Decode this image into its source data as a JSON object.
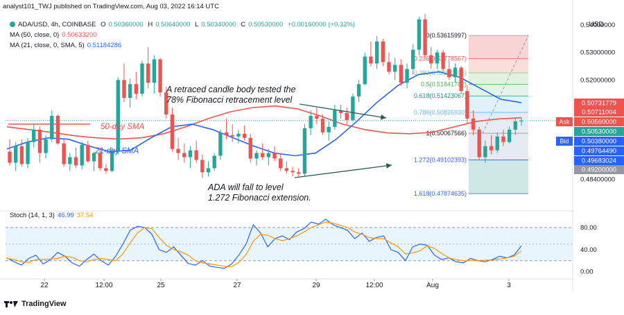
{
  "header": {
    "publisher": "analyst101_TWJ published on TradingView.com, Aug 03, 2022 16:14 UTC",
    "symbol": "ADA/USD, 4h, COINBASE",
    "ohlc": {
      "o_label": "O",
      "o": "0.50360000",
      "h_label": "H",
      "h": "0.50640000",
      "l_label": "L",
      "l": "0.50340000",
      "c_label": "C",
      "c": "0.50530000",
      "change": "+0.00160000 (+0.32%)"
    },
    "ma50": {
      "label": "MA (50, close, 0)",
      "value": "0.50633200"
    },
    "ma21": {
      "label": "MA (21, close, 0, SMA, 5)",
      "value": "0.51184286"
    },
    "stoch": {
      "label": "Stoch (14, 1, 3)",
      "k": "46.99",
      "d": "37.54"
    }
  },
  "currency_label": "USD",
  "footer": {
    "brand": "TradingView"
  },
  "colors": {
    "up": "#26a69a",
    "down": "#ef5350",
    "ma50": "#ef5350",
    "ma21": "#2962ff",
    "stoch_k": "#2962ff",
    "stoch_d": "#ff9800",
    "ask": "#ef5350",
    "bid": "#2962ff"
  },
  "chart_data": [
    {
      "type": "candlestick",
      "x_ticks": [
        "22",
        "12:00",
        "25",
        "27",
        "29",
        "12:00",
        "Aug",
        "3"
      ],
      "y_ticks": [
        "0.54000000",
        "0.53000000",
        "0.52000000",
        "0.48400000"
      ],
      "y_range": [
        0.4735,
        0.5435
      ],
      "candles": [
        [
          0.494,
          0.4985,
          0.489,
          0.49
        ],
        [
          0.49,
          0.4975,
          0.487,
          0.496
        ],
        [
          0.496,
          0.4985,
          0.4885,
          0.4895
        ],
        [
          0.4895,
          0.499,
          0.488,
          0.4975
        ],
        [
          0.4975,
          0.504,
          0.4955,
          0.502
        ],
        [
          0.502,
          0.503,
          0.49,
          0.4935
        ],
        [
          0.4935,
          0.5,
          0.4915,
          0.4985
        ],
        [
          0.4985,
          0.509,
          0.4975,
          0.507
        ],
        [
          0.507,
          0.5075,
          0.4965,
          0.497
        ],
        [
          0.497,
          0.4985,
          0.4885,
          0.4895
        ],
        [
          0.4895,
          0.4935,
          0.487,
          0.492
        ],
        [
          0.492,
          0.4955,
          0.488,
          0.489
        ],
        [
          0.489,
          0.4975,
          0.4875,
          0.4965
        ],
        [
          0.4965,
          0.498,
          0.49,
          0.4905
        ],
        [
          0.4905,
          0.494,
          0.487,
          0.4935
        ],
        [
          0.4935,
          0.4955,
          0.487,
          0.488
        ],
        [
          0.488,
          0.4895,
          0.486,
          0.487
        ],
        [
          0.487,
          0.4955,
          0.4865,
          0.4945
        ],
        [
          0.4945,
          0.521,
          0.493,
          0.52
        ],
        [
          0.52,
          0.526,
          0.512,
          0.5135
        ],
        [
          0.5135,
          0.5205,
          0.51,
          0.5185
        ],
        [
          0.5185,
          0.523,
          0.513,
          0.515
        ],
        [
          0.515,
          0.527,
          0.514,
          0.526
        ],
        [
          0.526,
          0.532,
          0.517,
          0.519
        ],
        [
          0.519,
          0.529,
          0.515,
          0.5275
        ],
        [
          0.5275,
          0.528,
          0.514,
          0.5155
        ],
        [
          0.5155,
          0.5175,
          0.506,
          0.5075
        ],
        [
          0.5075,
          0.51,
          0.494,
          0.495
        ],
        [
          0.495,
          0.499,
          0.491,
          0.4935
        ],
        [
          0.4935,
          0.497,
          0.49,
          0.492
        ],
        [
          0.492,
          0.496,
          0.488,
          0.4945
        ],
        [
          0.4945,
          0.498,
          0.49,
          0.491
        ],
        [
          0.491,
          0.493,
          0.4845,
          0.4865
        ],
        [
          0.4865,
          0.4905,
          0.485,
          0.488
        ],
        [
          0.488,
          0.4935,
          0.487,
          0.4925
        ],
        [
          0.4925,
          0.502,
          0.491,
          0.501
        ],
        [
          0.501,
          0.506,
          0.4985,
          0.5
        ],
        [
          0.5,
          0.504,
          0.4975,
          0.4995
        ],
        [
          0.4995,
          0.502,
          0.497,
          0.5005
        ],
        [
          0.5005,
          0.5035,
          0.498,
          0.499
        ],
        [
          0.499,
          0.5005,
          0.49,
          0.4915
        ],
        [
          0.4915,
          0.4945,
          0.489,
          0.4935
        ],
        [
          0.4935,
          0.497,
          0.491,
          0.492
        ],
        [
          0.492,
          0.495,
          0.489,
          0.4935
        ],
        [
          0.4935,
          0.496,
          0.4905,
          0.4915
        ],
        [
          0.4915,
          0.4935,
          0.487,
          0.488
        ],
        [
          0.488,
          0.4905,
          0.486,
          0.487
        ],
        [
          0.487,
          0.4885,
          0.485,
          0.4865
        ],
        [
          0.4865,
          0.488,
          0.485,
          0.486
        ],
        [
          0.486,
          0.504,
          0.485,
          0.5025
        ],
        [
          0.5025,
          0.509,
          0.5,
          0.507
        ],
        [
          0.507,
          0.51,
          0.504,
          0.506
        ],
        [
          0.506,
          0.5075,
          0.5,
          0.501
        ],
        [
          0.501,
          0.505,
          0.498,
          0.503
        ],
        [
          0.503,
          0.511,
          0.502,
          0.509
        ],
        [
          0.509,
          0.511,
          0.506,
          0.508
        ],
        [
          0.508,
          0.51,
          0.504,
          0.5055
        ],
        [
          0.5055,
          0.515,
          0.505,
          0.514
        ],
        [
          0.514,
          0.52,
          0.512,
          0.5185
        ],
        [
          0.5185,
          0.53,
          0.518,
          0.5285
        ],
        [
          0.5285,
          0.534,
          0.525,
          0.526
        ],
        [
          0.526,
          0.536,
          0.524,
          0.534
        ],
        [
          0.534,
          0.535,
          0.525,
          0.5265
        ],
        [
          0.5265,
          0.53,
          0.522,
          0.523
        ],
        [
          0.523,
          0.528,
          0.52,
          0.5255
        ],
        [
          0.5255,
          0.5275,
          0.518,
          0.519
        ],
        [
          0.519,
          0.526,
          0.517,
          0.524
        ],
        [
          0.524,
          0.533,
          0.522,
          0.531
        ],
        [
          0.531,
          0.543,
          0.529,
          0.542
        ],
        [
          0.542,
          0.544,
          0.528,
          0.529
        ],
        [
          0.529,
          0.532,
          0.524,
          0.526
        ],
        [
          0.526,
          0.531,
          0.524,
          0.53
        ],
        [
          0.53,
          0.531,
          0.523,
          0.524
        ],
        [
          0.524,
          0.527,
          0.52,
          0.521
        ],
        [
          0.521,
          0.526,
          0.519,
          0.5245
        ],
        [
          0.5245,
          0.525,
          0.515,
          0.516
        ],
        [
          0.516,
          0.518,
          0.504,
          0.506
        ],
        [
          0.506,
          0.509,
          0.5,
          0.502
        ],
        [
          0.502,
          0.503,
          0.491,
          0.492
        ],
        [
          0.492,
          0.498,
          0.49,
          0.496
        ],
        [
          0.496,
          0.5,
          0.493,
          0.4945
        ],
        [
          0.4945,
          0.501,
          0.4935,
          0.4995
        ],
        [
          0.4995,
          0.502,
          0.496,
          0.4975
        ],
        [
          0.4975,
          0.503,
          0.497,
          0.502
        ],
        [
          0.502,
          0.506,
          0.5,
          0.505
        ],
        [
          0.505,
          0.5064,
          0.5034,
          0.5053
        ]
      ],
      "ma50": [
        0.503,
        0.502,
        0.501,
        0.4998,
        0.499,
        0.4986,
        0.499,
        0.5005,
        0.503,
        0.506,
        0.5085,
        0.51,
        0.5106,
        0.5095,
        0.507,
        0.504,
        0.502,
        0.5008,
        0.5005,
        0.501,
        0.503,
        0.505,
        0.5059,
        0.5063
      ],
      "ma21": [
        0.495,
        0.4975,
        0.499,
        0.4985,
        0.496,
        0.494,
        0.4945,
        0.499,
        0.503,
        0.504,
        0.502,
        0.499,
        0.496,
        0.4935,
        0.4925,
        0.4935,
        0.4985,
        0.505,
        0.512,
        0.518,
        0.522,
        0.523,
        0.521,
        0.517,
        0.513,
        0.5118
      ],
      "fibonacci": [
        {
          "label": "0(0.53615997)",
          "value": 0.53616
        },
        {
          "label": "0.236(0.52778567)",
          "value": 0.52779
        },
        {
          "label": "0.382(0.52260496)",
          "value": 0.5226
        },
        {
          "label": "0.5(0.51841782)",
          "value": 0.51842
        },
        {
          "label": "0.618(0.51423067)",
          "value": 0.51423
        },
        {
          "label": "0.786(0.50826930)",
          "value": 0.50827
        },
        {
          "label": "1(0.50067566)",
          "value": 0.50068
        },
        {
          "label": "1.272(0.49102393)",
          "value": 0.49102
        },
        {
          "label": "1.618(0.47874635)",
          "value": 0.47875
        }
      ],
      "price_tags": [
        {
          "label": "",
          "value": "0.50731779",
          "color": "#ef5350"
        },
        {
          "label": "",
          "value": "0.50711004",
          "color": "#ef5350"
        },
        {
          "label": "Ask",
          "value": "0.50560000",
          "color": "#ef5350"
        },
        {
          "label": "",
          "value": "0.50530000",
          "color": "#26a69a"
        },
        {
          "label": "Bid",
          "value": "0.50380000",
          "color": "#2962ff"
        },
        {
          "label": "",
          "value": "0.49764490",
          "color": "#2962ff"
        },
        {
          "label": "",
          "value": "0.49683024",
          "color": "#2962ff"
        },
        {
          "label": "",
          "value": "0.49200000",
          "color": "#9598a1"
        }
      ],
      "annotations": [
        {
          "text": "A retraced candle body tested the"
        },
        {
          "text": "78% Fibonacci retracement level"
        },
        {
          "text": "ADA will fall to level"
        },
        {
          "text": "1.272 Fibonacci extension."
        },
        {
          "text": "50-day SMA"
        },
        {
          "text": "21-day SMA"
        }
      ]
    },
    {
      "type": "line",
      "title": "Stoch (14, 1, 3)",
      "y_ticks": [
        "80.00",
        "40.00",
        "0.00"
      ],
      "y_range": [
        -8,
        100
      ],
      "bands": [
        20,
        80
      ],
      "series": [
        {
          "name": "%K",
          "color": "#2962ff",
          "values": [
            25,
            18,
            12,
            24,
            30,
            14,
            22,
            35,
            28,
            16,
            10,
            22,
            32,
            20,
            12,
            28,
            50,
            75,
            82,
            80,
            68,
            40,
            35,
            45,
            30,
            15,
            12,
            20,
            10,
            8,
            6,
            14,
            30,
            50,
            85,
            70,
            45,
            60,
            65,
            58,
            72,
            78,
            90,
            86,
            95,
            85,
            80,
            75,
            60,
            70,
            55,
            62,
            65,
            40,
            35,
            20,
            45,
            50,
            48,
            30,
            22,
            25,
            18,
            16,
            24,
            20,
            18,
            22,
            28,
            25,
            30,
            46.99
          ]
        },
        {
          "name": "%D",
          "color": "#ff9800",
          "values": [
            24,
            22,
            18,
            17,
            22,
            22,
            23,
            24,
            28,
            26,
            20,
            18,
            22,
            24,
            22,
            20,
            32,
            52,
            70,
            80,
            78,
            62,
            48,
            40,
            36,
            30,
            20,
            16,
            14,
            12,
            10,
            9,
            17,
            31,
            55,
            68,
            66,
            60,
            56,
            60,
            65,
            72,
            80,
            85,
            90,
            88,
            84,
            80,
            72,
            68,
            62,
            60,
            60,
            52,
            45,
            32,
            34,
            38,
            47,
            42,
            33,
            25,
            22,
            20,
            20,
            20,
            21,
            21,
            23,
            25,
            28,
            37.54
          ]
        }
      ]
    }
  ]
}
